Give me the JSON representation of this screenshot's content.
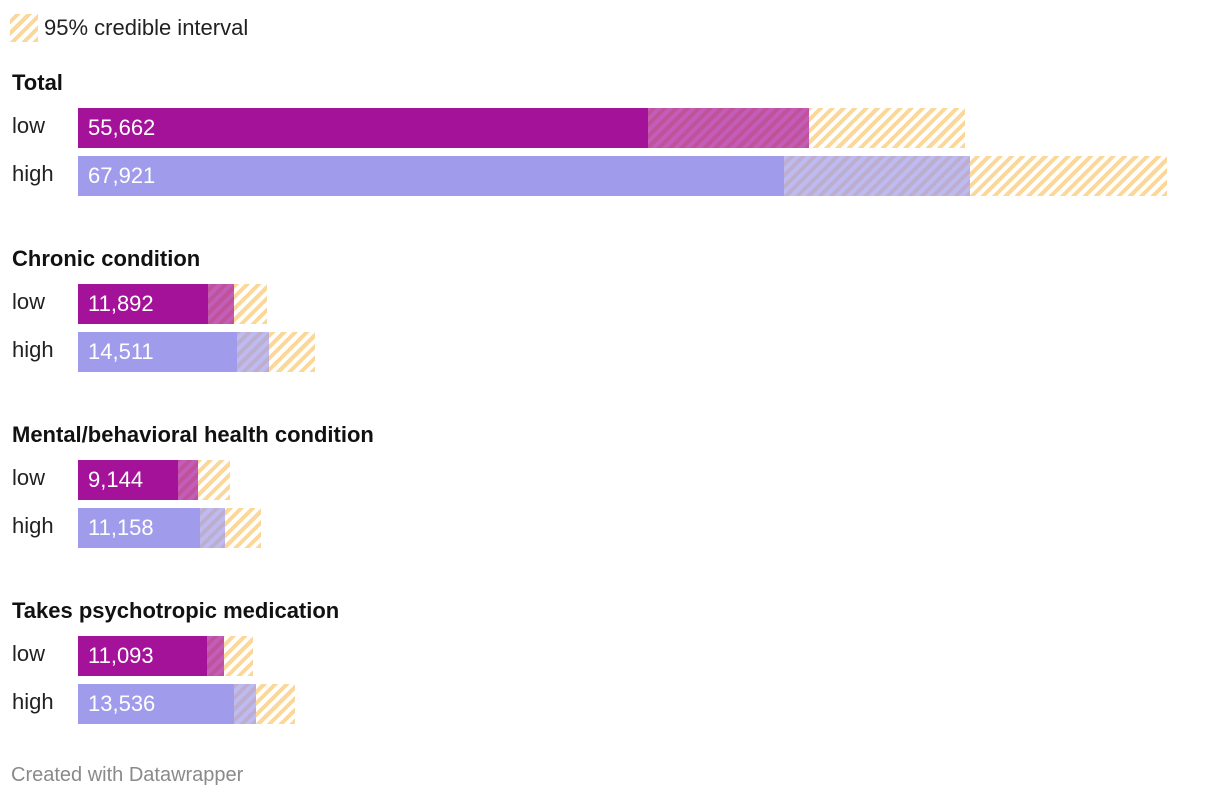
{
  "legend": {
    "label": "95% credible interval"
  },
  "footer": {
    "text": "Created with Datawrapper"
  },
  "colors": {
    "low": "#a5129a",
    "high": "#a09bea",
    "interval": "#fbd89a"
  },
  "chart_data": {
    "type": "bar",
    "orientation": "horizontal",
    "series": [
      {
        "name": "low",
        "color": "#a5129a"
      },
      {
        "name": "high",
        "color": "#a09bea"
      }
    ],
    "groups": [
      {
        "title": "Total",
        "rows": [
          {
            "label": "low",
            "value": 55662,
            "display": "55,662",
            "ci": [
              43400,
              67500
            ]
          },
          {
            "label": "high",
            "value": 67921,
            "display": "67,921",
            "ci": [
              53700,
              82900
            ]
          }
        ]
      },
      {
        "title": "Chronic condition",
        "rows": [
          {
            "label": "low",
            "value": 11892,
            "display": "11,892",
            "ci": [
              9900,
              14400
            ]
          },
          {
            "label": "high",
            "value": 14511,
            "display": "14,511",
            "ci": [
              12100,
              18000
            ]
          }
        ]
      },
      {
        "title": "Mental/behavioral health condition",
        "rows": [
          {
            "label": "low",
            "value": 9144,
            "display": "9,144",
            "ci": [
              7600,
              11600
            ]
          },
          {
            "label": "high",
            "value": 11158,
            "display": "11,158",
            "ci": [
              9300,
              13900
            ]
          }
        ]
      },
      {
        "title": "Takes psychotropic medication",
        "rows": [
          {
            "label": "low",
            "value": 11093,
            "display": "11,093",
            "ci": [
              9800,
              13300
            ]
          },
          {
            "label": "high",
            "value": 13536,
            "display": "13,536",
            "ci": [
              11900,
              16500
            ]
          }
        ]
      }
    ],
    "xlim": [
      0,
      86000
    ]
  }
}
